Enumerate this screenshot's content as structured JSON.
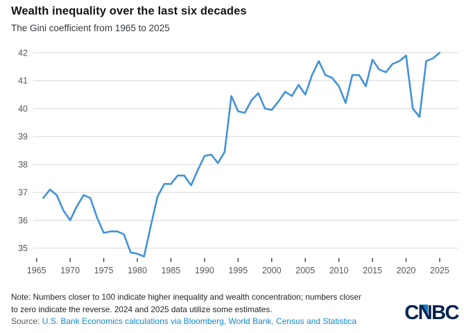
{
  "header": {
    "title": "Wealth inequality over the last six decades",
    "subtitle": "The Gini coefficient from 1965 to 2025"
  },
  "footer": {
    "note_line1": "Note: Numbers closer to 100 indicate higher inequality and wealth concentration; numbers closer",
    "note_line2": "to zero indicate the reverse. 2024 and 2025 data utilize some estimates.",
    "source_prefix": "Source: ",
    "source_text": "U.S. Bank Economics calculations via Bloomberg, World Bank, Census and Statistica",
    "logo_text": "CNBC"
  },
  "colors": {
    "line": "#4191d9",
    "grid": "#d8d8d8",
    "axis_text": "#54575c",
    "tick": "#34373b",
    "title": "#121417",
    "subtitle": "#35393e",
    "note": "#222528",
    "link": "#1089cc",
    "logo_navy": "#01234f",
    "logo_blue": "#0f79c6"
  },
  "chart_data": {
    "type": "line",
    "title": "Wealth inequality over the last six decades",
    "subtitle": "The Gini coefficient from 1965 to 2025",
    "xlabel": "",
    "ylabel": "",
    "grid": "horizontal",
    "legend": "none",
    "x_ticks": [
      1965,
      1970,
      1975,
      1980,
      1985,
      1990,
      1995,
      2000,
      2005,
      2010,
      2015,
      2020,
      2025
    ],
    "y_ticks": [
      35,
      36,
      37,
      38,
      39,
      40,
      41,
      42
    ],
    "xlim": [
      1964.3,
      2027.8
    ],
    "ylim": [
      34.5,
      42.3
    ],
    "x": [
      1966,
      1967,
      1968,
      1969,
      1970,
      1971,
      1972,
      1973,
      1974,
      1975,
      1976,
      1977,
      1978,
      1979,
      1980,
      1981,
      1982,
      1983,
      1984,
      1985,
      1986,
      1987,
      1988,
      1989,
      1990,
      1991,
      1992,
      1993,
      1994,
      1995,
      1996,
      1997,
      1998,
      1999,
      2000,
      2001,
      2002,
      2003,
      2004,
      2005,
      2006,
      2007,
      2008,
      2009,
      2010,
      2011,
      2012,
      2013,
      2014,
      2015,
      2016,
      2017,
      2018,
      2019,
      2020,
      2021,
      2022,
      2023,
      2024,
      2025
    ],
    "series": [
      {
        "name": "Gini coefficient",
        "values": [
          36.8,
          37.1,
          36.9,
          36.35,
          36.0,
          36.5,
          36.9,
          36.8,
          36.1,
          35.55,
          35.6,
          35.6,
          35.5,
          34.85,
          34.8,
          34.7,
          35.8,
          36.85,
          37.3,
          37.3,
          37.6,
          37.6,
          37.25,
          37.8,
          38.3,
          38.35,
          38.05,
          38.45,
          40.45,
          39.9,
          39.85,
          40.3,
          40.55,
          40.0,
          39.95,
          40.25,
          40.6,
          40.45,
          40.85,
          40.5,
          41.2,
          41.7,
          41.2,
          41.1,
          40.8,
          40.2,
          41.2,
          41.2,
          40.8,
          41.75,
          41.4,
          41.3,
          41.6,
          41.7,
          41.9,
          40.0,
          39.7,
          41.7,
          41.8,
          42.0
        ]
      }
    ]
  }
}
